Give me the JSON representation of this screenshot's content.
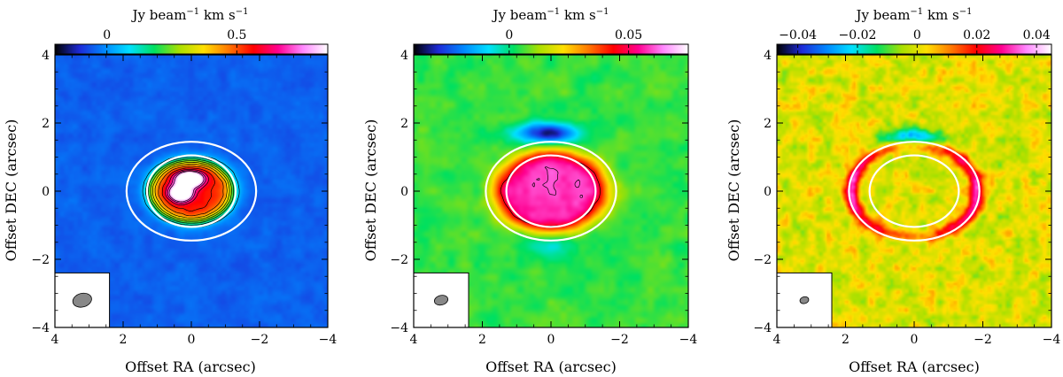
{
  "figure": {
    "colorbar_unit": {
      "main": "Jy beam",
      "sup1": "−1",
      "mid": " km s",
      "sup2": "−1"
    },
    "xlabel": "Offset RA (arcsec)",
    "ylabel": "Offset DEC (arcsec)"
  },
  "chart_data": [
    {
      "type": "heatmap",
      "panel": "left",
      "colormap": [
        "#000000",
        "#1e2bd8",
        "#0088ff",
        "#00e0ff",
        "#00e060",
        "#a8e000",
        "#ffe000",
        "#ff7800",
        "#ff0000",
        "#ff0090",
        "#ff88ff",
        "#ffffff"
      ],
      "colorbar": {
        "range": [
          -0.2,
          0.85
        ],
        "ticks": [
          {
            "value": 0,
            "label": "0"
          },
          {
            "value": 0.5,
            "label": "0.5"
          }
        ]
      },
      "x_axis": {
        "range": [
          4,
          -4
        ],
        "ticks": [
          4,
          2,
          0,
          -2,
          -4
        ],
        "tick_labels": [
          "4",
          "2",
          "0",
          "−2",
          "−4"
        ]
      },
      "y_axis": {
        "range": [
          -4,
          4
        ],
        "ticks": [
          -4,
          -2,
          0,
          2,
          4
        ],
        "tick_labels": [
          "−4",
          "−2",
          "0",
          "2",
          "4"
        ]
      },
      "background_value": -0.05,
      "features": [
        {
          "kind": "disk",
          "center": [
            0,
            0
          ],
          "radii": [
            1.2,
            0.9
          ],
          "peak": 0.55
        },
        {
          "kind": "peak",
          "center": [
            0.05,
            0.35
          ],
          "radii": [
            0.35,
            0.2
          ],
          "peak": 0.85
        },
        {
          "kind": "peak",
          "center": [
            0.3,
            -0.05
          ],
          "radii": [
            0.3,
            0.22
          ],
          "peak": 0.78
        }
      ],
      "contour_levels": [
        0.05,
        0.12,
        0.19,
        0.26,
        0.33,
        0.4,
        0.47,
        0.54,
        0.61,
        0.68,
        0.75
      ],
      "ellipses": [
        {
          "center": [
            0,
            0
          ],
          "radii": [
            1.9,
            1.45
          ]
        },
        {
          "center": [
            0,
            0
          ],
          "radii": [
            1.3,
            1.05
          ]
        }
      ],
      "beam": {
        "major": 0.28,
        "minor": 0.2
      }
    },
    {
      "type": "heatmap",
      "panel": "middle",
      "colormap": [
        "#000000",
        "#1e2bd8",
        "#0088ff",
        "#00e0ff",
        "#00e060",
        "#a8e000",
        "#ffe000",
        "#ff7800",
        "#ff0000",
        "#ff0090",
        "#ff88ff",
        "#ffffff"
      ],
      "colorbar": {
        "range": [
          -0.04,
          0.075
        ],
        "ticks": [
          {
            "value": 0,
            "label": "0"
          },
          {
            "value": 0.05,
            "label": "0.05"
          }
        ]
      },
      "x_axis": {
        "range": [
          4,
          -4
        ],
        "ticks": [
          4,
          2,
          0,
          -2,
          -4
        ],
        "tick_labels": [
          "4",
          "2",
          "0",
          "−2",
          "−4"
        ]
      },
      "y_axis": {
        "range": [
          -4,
          4
        ],
        "ticks": [
          -4,
          -2,
          0,
          2,
          4
        ],
        "tick_labels": [
          "−4",
          "−2",
          "0",
          "2",
          "4"
        ]
      },
      "background_value": 0.005,
      "features": [
        {
          "kind": "disk",
          "center": [
            0,
            0
          ],
          "radii": [
            1.6,
            1.15
          ],
          "peak": 0.06
        },
        {
          "kind": "dip",
          "center": [
            0.1,
            1.7
          ],
          "radii": [
            0.9,
            0.3
          ],
          "peak": -0.04
        },
        {
          "kind": "dip",
          "center": [
            0,
            -1.6
          ],
          "radii": [
            0.9,
            0.3
          ],
          "peak": -0.012
        }
      ],
      "contour_levels": [
        0.045,
        0.06
      ],
      "ellipses": [
        {
          "center": [
            0,
            0
          ],
          "radii": [
            1.9,
            1.45
          ]
        },
        {
          "center": [
            0,
            0
          ],
          "radii": [
            1.3,
            1.05
          ]
        }
      ],
      "beam": {
        "major": 0.2,
        "minor": 0.14
      }
    },
    {
      "type": "heatmap",
      "panel": "right",
      "colormap": [
        "#000000",
        "#1e2bd8",
        "#0088ff",
        "#00e0ff",
        "#00e060",
        "#a8e000",
        "#ffe000",
        "#ff7800",
        "#ff0000",
        "#ff0090",
        "#ff88ff",
        "#ffffff"
      ],
      "colorbar": {
        "range": [
          -0.047,
          0.045
        ],
        "ticks": [
          {
            "value": -0.04,
            "label": "−0.04"
          },
          {
            "value": -0.02,
            "label": "−0.02"
          },
          {
            "value": 0,
            "label": "0"
          },
          {
            "value": 0.02,
            "label": "0.02"
          },
          {
            "value": 0.04,
            "label": "0.04"
          }
        ]
      },
      "x_axis": {
        "range": [
          4,
          -4
        ],
        "ticks": [
          4,
          2,
          0,
          -2,
          -4
        ],
        "tick_labels": [
          "4",
          "2",
          "0",
          "−2",
          "−4"
        ]
      },
      "y_axis": {
        "range": [
          -4,
          4
        ],
        "ticks": [
          -4,
          -2,
          0,
          2,
          4
        ],
        "tick_labels": [
          "−4",
          "−2",
          "0",
          "2",
          "4"
        ]
      },
      "background_value": 0.0,
      "features": [
        {
          "kind": "ring",
          "center": [
            0,
            0
          ],
          "radii": [
            1.85,
            1.35
          ],
          "peak": 0.03
        },
        {
          "kind": "dip",
          "center": [
            0,
            1.6
          ],
          "radii": [
            1.0,
            0.25
          ],
          "peak": -0.025
        }
      ],
      "contour_levels": [],
      "ellipses": [
        {
          "center": [
            0,
            0
          ],
          "radii": [
            1.9,
            1.45
          ]
        },
        {
          "center": [
            0,
            0
          ],
          "radii": [
            1.3,
            1.05
          ]
        }
      ],
      "beam": {
        "major": 0.13,
        "minor": 0.1
      }
    }
  ]
}
